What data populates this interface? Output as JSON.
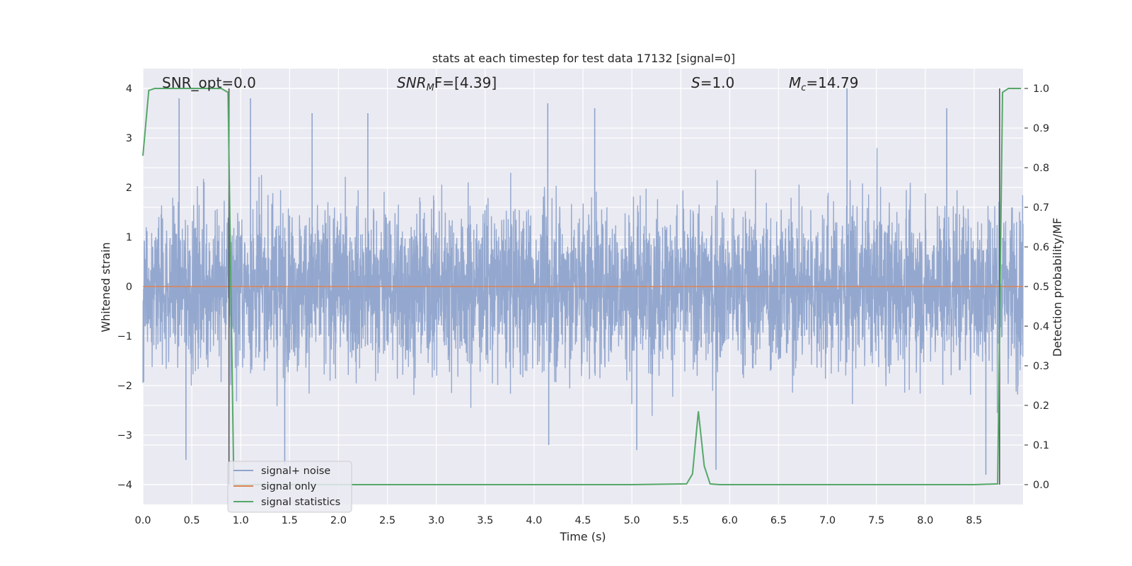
{
  "chart_data": {
    "type": "line",
    "title": "stats at each timestep for test data 17132 [signal=0]",
    "xlabel": "Time (s)",
    "ylabel": "Whitened strain",
    "ylabel_right": "Detection probability/MF",
    "xlim": [
      0,
      9.0
    ],
    "ylim": [
      -4.4,
      4.4
    ],
    "ylim_right": [
      -0.05,
      1.05
    ],
    "x_ticks": [
      "0.0",
      "0.5",
      "1.0",
      "1.5",
      "2.0",
      "2.5",
      "3.0",
      "3.5",
      "4.0",
      "4.5",
      "5.0",
      "5.5",
      "6.0",
      "6.5",
      "7.0",
      "7.5",
      "8.0",
      "8.5"
    ],
    "y_ticks_left": [
      "4",
      "3",
      "2",
      "1",
      "0",
      "−1",
      "−2",
      "−3",
      "−4"
    ],
    "y_ticks_right": [
      "1.0",
      "0.9",
      "0.8",
      "0.7",
      "0.6",
      "0.5",
      "0.4",
      "0.3",
      "0.2",
      "0.1",
      "0.0"
    ],
    "grid": true,
    "legend_position": "lower-left",
    "annotations": [
      {
        "label": "SNR_opt=0.0",
        "x": 0.18,
        "y": 4.1
      },
      {
        "label_main": "SNR",
        "label_sub": "M",
        "label_rest": "F=[4.39]",
        "x": 2.6,
        "y": 4.1
      },
      {
        "label_main": "S",
        "label_rest": "=1.0",
        "x": 5.6,
        "y": 4.1
      },
      {
        "label_main": "M",
        "label_sub": "c",
        "label_rest": "=14.79",
        "x": 6.6,
        "y": 4.1
      }
    ],
    "series": [
      {
        "name": "signal+ noise",
        "color": "#8fa4cc",
        "description": "whitened noise, approx. Gaussian, std ~0.8, spikes up to about ±3.8",
        "spikes": [
          {
            "x": 0.37,
            "y": 3.8
          },
          {
            "x": 0.44,
            "y": -3.5
          },
          {
            "x": 1.1,
            "y": 3.8
          },
          {
            "x": 1.45,
            "y": -3.6
          },
          {
            "x": 1.73,
            "y": 3.5
          },
          {
            "x": 2.3,
            "y": 3.5
          },
          {
            "x": 4.14,
            "y": 3.7
          },
          {
            "x": 4.15,
            "y": -3.2
          },
          {
            "x": 4.62,
            "y": 3.6
          },
          {
            "x": 5.05,
            "y": -3.3
          },
          {
            "x": 5.86,
            "y": -3.7
          },
          {
            "x": 7.2,
            "y": 4.0
          },
          {
            "x": 8.22,
            "y": 3.6
          },
          {
            "x": 8.62,
            "y": -3.8
          }
        ]
      },
      {
        "name": "signal only",
        "color": "#dd8452",
        "description": "flat at zero",
        "x": [
          0,
          9.0
        ],
        "y": [
          0,
          0
        ]
      },
      {
        "name": "signal statistics",
        "color": "#55a868",
        "axis": "right",
        "x": [
          0.0,
          0.06,
          0.12,
          0.2,
          0.5,
          0.8,
          0.87,
          0.93,
          1.0,
          1.5,
          2.0,
          3.0,
          4.0,
          5.0,
          5.56,
          5.62,
          5.68,
          5.74,
          5.8,
          5.9,
          6.5,
          7.0,
          8.0,
          8.5,
          8.74,
          8.79,
          8.85,
          8.92,
          8.98
        ],
        "y": [
          0.83,
          0.995,
          1.0,
          1.0,
          1.0,
          1.0,
          0.99,
          0.0,
          0.0,
          0.0,
          0.0,
          0.0,
          0.0,
          0.0,
          0.002,
          0.027,
          0.185,
          0.047,
          0.002,
          0.0,
          0.0,
          0.0,
          0.0,
          0.0,
          0.002,
          0.99,
          1.0,
          1.0,
          1.0
        ]
      }
    ],
    "extra_marks": [
      {
        "type": "vertical-line",
        "color": "#555555",
        "x": 0.88,
        "y_from": 4.0,
        "y_to": -4.0
      },
      {
        "type": "vertical-line",
        "color": "#555555",
        "x": 8.76,
        "y_from": 4.0,
        "y_to": -4.0
      }
    ]
  }
}
